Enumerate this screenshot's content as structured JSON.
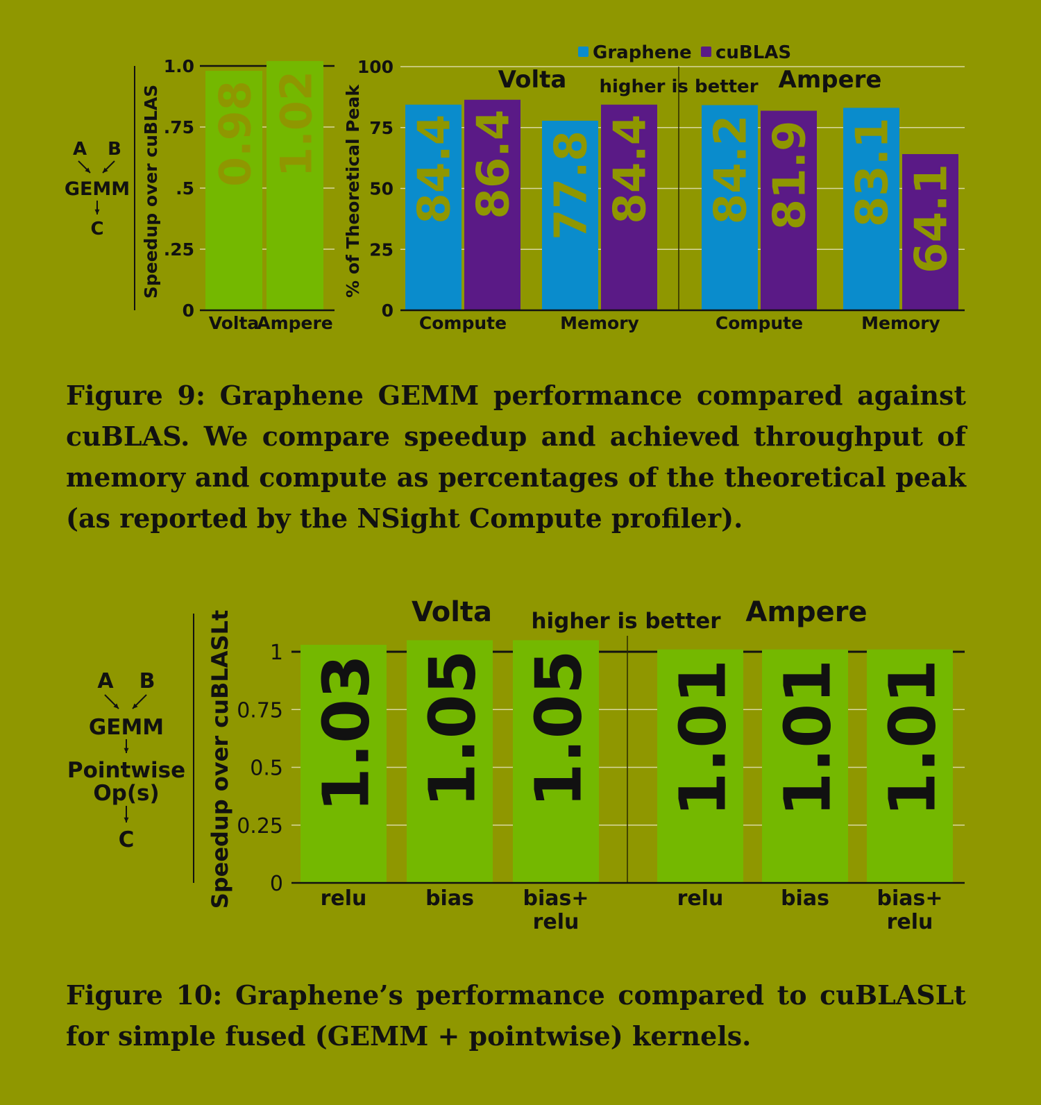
{
  "colors": {
    "background": "#8f9700",
    "graphene": "#0a8ccc",
    "cublas": "#5a1a86",
    "speedup_bar": "#74b800",
    "dim_label": "#8f9700",
    "dark": "#111111"
  },
  "figure9": {
    "caption": "Figure 9: Graphene GEMM performance compared against cuBLAS. We compare speedup and achieved throughput of memory and compute as percentages of the theoretical peak (as reported by the NSight Compute profiler).",
    "diagram": {
      "a": "A",
      "b": "B",
      "op": "GEMM",
      "out": "C"
    }
  },
  "figure10": {
    "caption": "Figure 10: Graphene’s performance compared to cuBLASLt for simple fused (GEMM + pointwise) kernels.",
    "diagram": {
      "a": "A",
      "b": "B",
      "op": "GEMM",
      "op2_line1": "Pointwise",
      "op2_line2": "Op(s)",
      "out": "C"
    }
  },
  "chart_data": [
    {
      "id": "fig9-speedup",
      "type": "bar",
      "ylabel": "Speedup over cuBLAS",
      "ylim": [
        0,
        1.0
      ],
      "yticks": [
        0,
        0.25,
        0.5,
        0.75,
        1.0
      ],
      "ytick_labels": [
        "0",
        ".25",
        ".5",
        ".75",
        "1.0"
      ],
      "categories": [
        "Volta",
        "Ampere"
      ],
      "values": [
        0.98,
        1.02
      ],
      "value_labels": [
        "0.98",
        "1.02"
      ],
      "grid": true
    },
    {
      "id": "fig9-throughput",
      "type": "bar",
      "ylabel": "% of Theoretical Peak",
      "ylim": [
        0,
        100
      ],
      "yticks": [
        0,
        25,
        50,
        75,
        100
      ],
      "ytick_labels": [
        "0",
        "25",
        "50",
        "75",
        "100"
      ],
      "legend": [
        "Graphene",
        "cuBLAS"
      ],
      "legend_position": "top",
      "annotation": "higher is better",
      "groups": [
        "Volta",
        "Ampere"
      ],
      "categories": [
        "Compute",
        "Memory",
        "Compute",
        "Memory"
      ],
      "series": [
        {
          "name": "Graphene",
          "values": [
            84.4,
            77.8,
            84.2,
            83.1
          ],
          "value_labels": [
            "84.4",
            "77.8",
            "84.2",
            "83.1"
          ]
        },
        {
          "name": "cuBLAS",
          "values": [
            86.4,
            84.4,
            81.9,
            64.1
          ],
          "value_labels": [
            "86.4",
            "84.4",
            "81.9",
            "64.1"
          ]
        }
      ],
      "grid": true
    },
    {
      "id": "fig10-speedup",
      "type": "bar",
      "ylabel": "Speedup over cuBLASLt",
      "ylim": [
        0,
        1
      ],
      "yticks": [
        0,
        0.25,
        0.5,
        0.75,
        1
      ],
      "ytick_labels": [
        "0",
        "0.25",
        "0.5",
        "0.75",
        "1"
      ],
      "annotation": "higher is better",
      "groups": [
        "Volta",
        "Ampere"
      ],
      "categories": [
        [
          "relu"
        ],
        [
          "bias"
        ],
        [
          "bias+",
          "relu"
        ],
        [
          "relu"
        ],
        [
          "bias"
        ],
        [
          "bias+",
          "relu"
        ]
      ],
      "values": [
        1.03,
        1.05,
        1.05,
        1.01,
        1.01,
        1.01
      ],
      "value_labels": [
        "1.03",
        "1.05",
        "1.05",
        "1.01",
        "1.01",
        "1.01"
      ],
      "grid": true
    }
  ]
}
